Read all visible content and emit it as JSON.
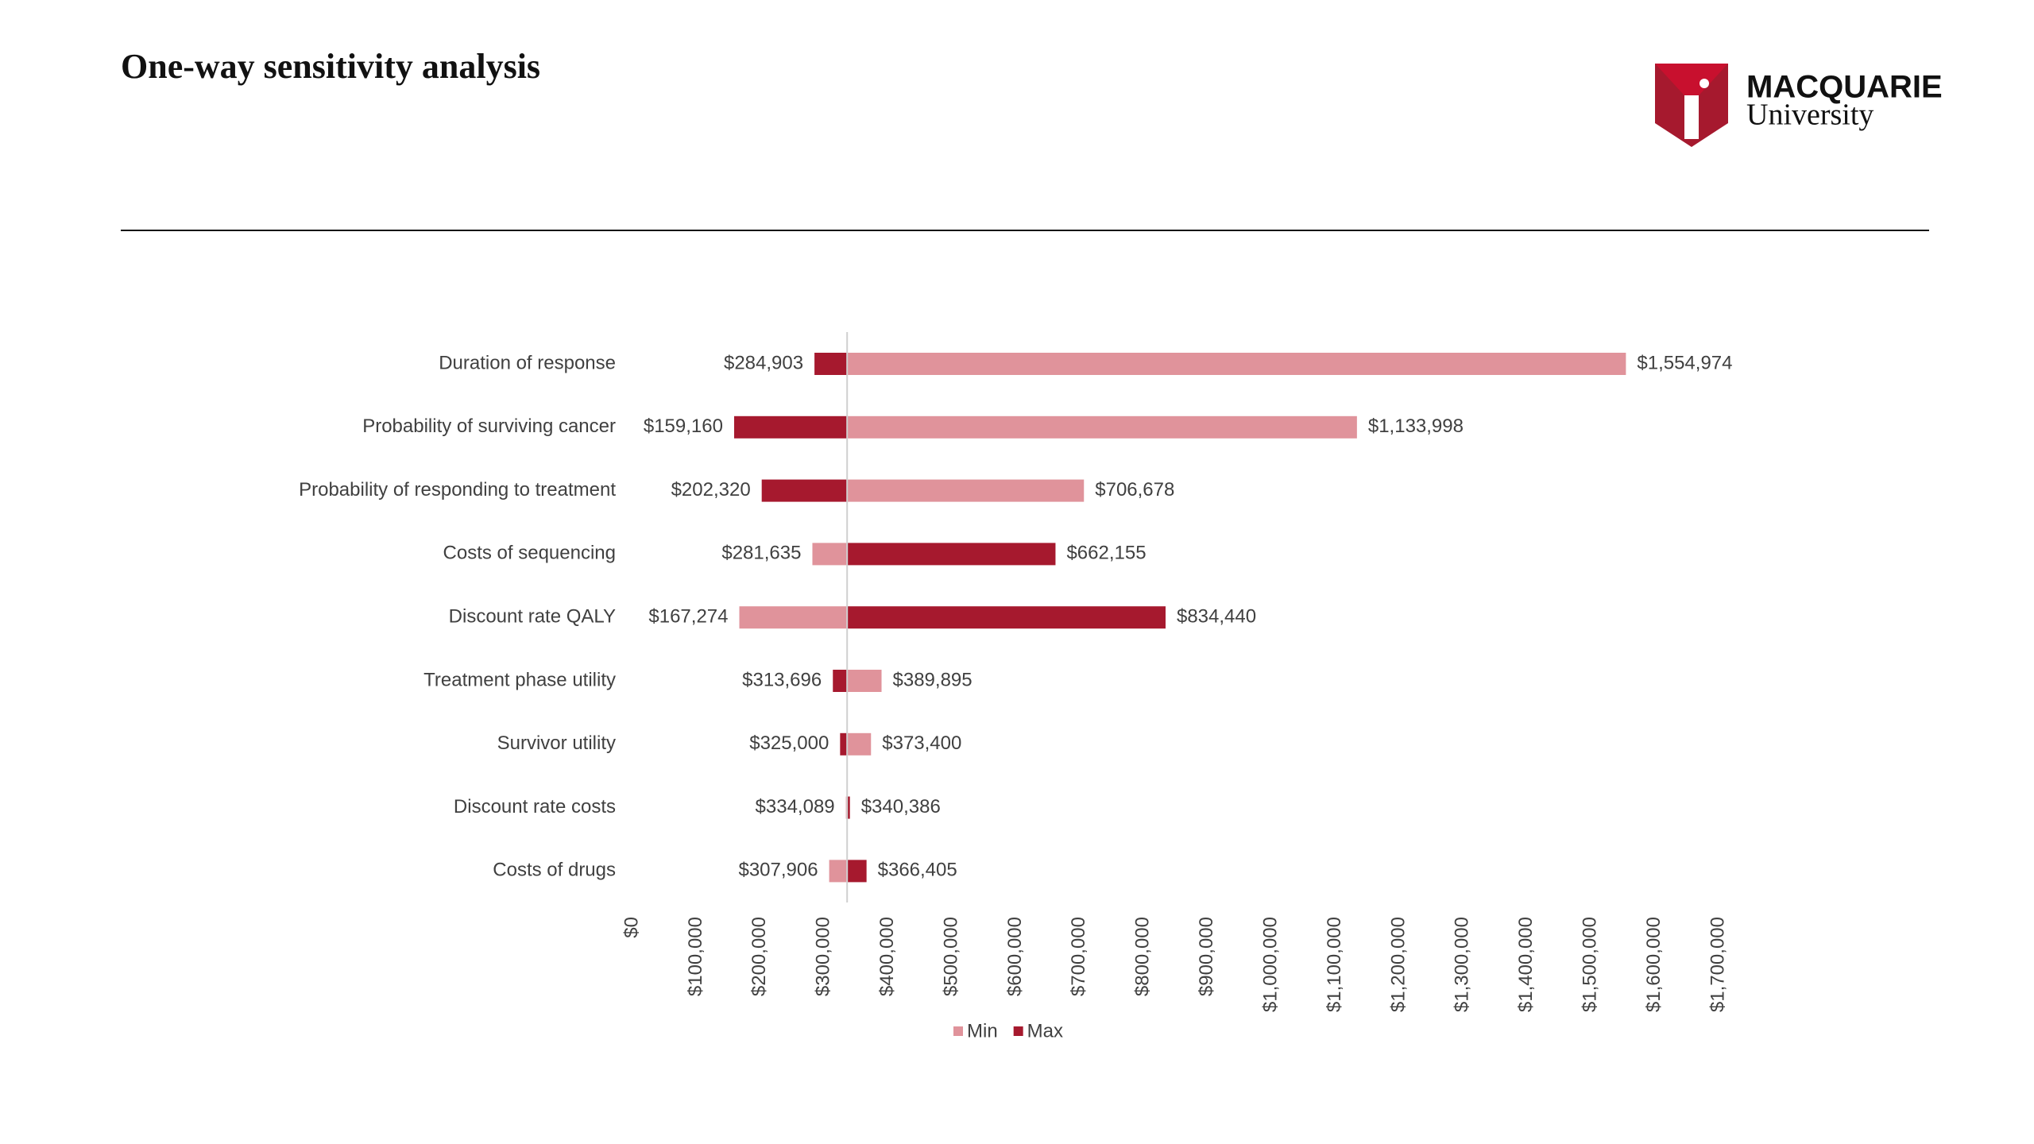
{
  "header": {
    "title": "One-way sensitivity analysis",
    "logo_name": "MACQUARIE",
    "logo_subtitle": "University"
  },
  "chart_data": {
    "type": "tornado",
    "categories": [
      "Duration of response",
      "Probability of surviving cancer",
      "Probability of responding to treatment",
      "Costs of sequencing",
      "Discount rate QALY",
      "Treatment phase utility",
      "Survivor utility",
      "Discount rate costs",
      "Costs of drugs"
    ],
    "base_value": 336000,
    "series": [
      {
        "name": "Min",
        "color": "#e0939b",
        "values": [
          1554974,
          1133998,
          706678,
          281635,
          167274,
          389895,
          373400,
          334089,
          307906
        ],
        "value_labels": [
          "$1,554,974",
          "$1,133,998",
          "$706,678",
          "$281,635",
          "$167,274",
          "$389,895",
          "$373,400",
          "$334,089",
          "$307,906"
        ]
      },
      {
        "name": "Max",
        "color": "#a6192e",
        "values": [
          284903,
          159160,
          202320,
          662155,
          834440,
          313696,
          325000,
          340386,
          366405
        ],
        "value_labels": [
          "$284,903",
          "$159,160",
          "$202,320",
          "$662,155",
          "$834,440",
          "$313,696",
          "$325,000",
          "$340,386",
          "$366,405"
        ]
      }
    ],
    "xlim": [
      0,
      1700000
    ],
    "xticks": [
      {
        "value": 0,
        "label": "$0"
      },
      {
        "value": 100000,
        "label": "$100,000"
      },
      {
        "value": 200000,
        "label": "$200,000"
      },
      {
        "value": 300000,
        "label": "$300,000"
      },
      {
        "value": 400000,
        "label": "$400,000"
      },
      {
        "value": 500000,
        "label": "$500,000"
      },
      {
        "value": 600000,
        "label": "$600,000"
      },
      {
        "value": 700000,
        "label": "$700,000"
      },
      {
        "value": 800000,
        "label": "$800,000"
      },
      {
        "value": 900000,
        "label": "$900,000"
      },
      {
        "value": 1000000,
        "label": "$1,000,000"
      },
      {
        "value": 1100000,
        "label": "$1,100,000"
      },
      {
        "value": 1200000,
        "label": "$1,200,000"
      },
      {
        "value": 1300000,
        "label": "$1,300,000"
      },
      {
        "value": 1400000,
        "label": "$1,400,000"
      },
      {
        "value": 1500000,
        "label": "$1,500,000"
      },
      {
        "value": 1600000,
        "label": "$1,600,000"
      },
      {
        "value": 1700000,
        "label": "$1,700,000"
      }
    ],
    "legend": "bottom"
  }
}
